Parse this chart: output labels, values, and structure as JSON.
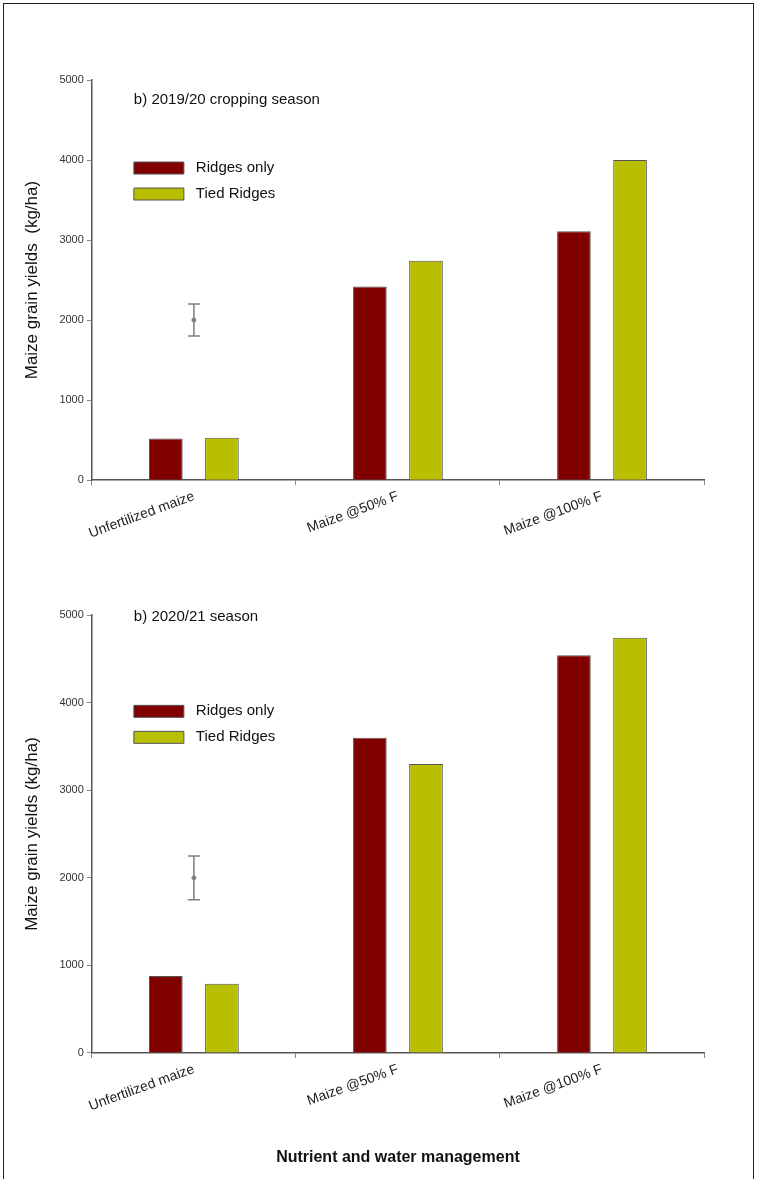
{
  "chart_data": [
    {
      "type": "bar",
      "title": "b) 2019/20 cropping season",
      "ylabel": "Maize grain yields  (kg/ha)",
      "categories": [
        "Unfertilized maize",
        "Maize @50% F",
        "Maize @100% F"
      ],
      "series": [
        {
          "name": "Ridges only",
          "color": "#800000",
          "values": [
            520,
            2420,
            3110
          ]
        },
        {
          "name": "Tied Ridges",
          "color": "#b8bf00",
          "values": [
            530,
            2740,
            4000
          ]
        },
        {
          "type": "scatter",
          "color": "#808080",
          "marker": "circle",
          "x": [
            "Unfertilized maize"
          ],
          "values": [
            2000
          ],
          "errors": [
            200
          ]
        }
      ],
      "ylim": [
        0,
        5000
      ],
      "yticks": [
        0,
        1000,
        2000,
        3000,
        4000,
        5000
      ],
      "legend": "top left"
    },
    {
      "type": "bar",
      "title": "b) 2020/21 season",
      "ylabel": "Maize grain yields (kg/ha)",
      "xlabel": "Nutrient and water management",
      "categories": [
        "Unfertilized maize",
        "Maize @50% F",
        "Maize @100% F"
      ],
      "series": [
        {
          "name": "Ridges only",
          "color": "#800000",
          "values": [
            880,
            3600,
            4540
          ]
        },
        {
          "name": "Tied Ridges",
          "color": "#b8bf00",
          "values": [
            790,
            3300,
            4740
          ]
        },
        {
          "type": "scatter",
          "color": "#808080",
          "marker": "circle",
          "x": [
            "Unfertilized maize"
          ],
          "values": [
            2000
          ],
          "errors": [
            250
          ]
        }
      ],
      "ylim": [
        0,
        5000
      ],
      "yticks": [
        0,
        1000,
        2000,
        3000,
        4000,
        5000
      ],
      "legend": "top left"
    }
  ]
}
